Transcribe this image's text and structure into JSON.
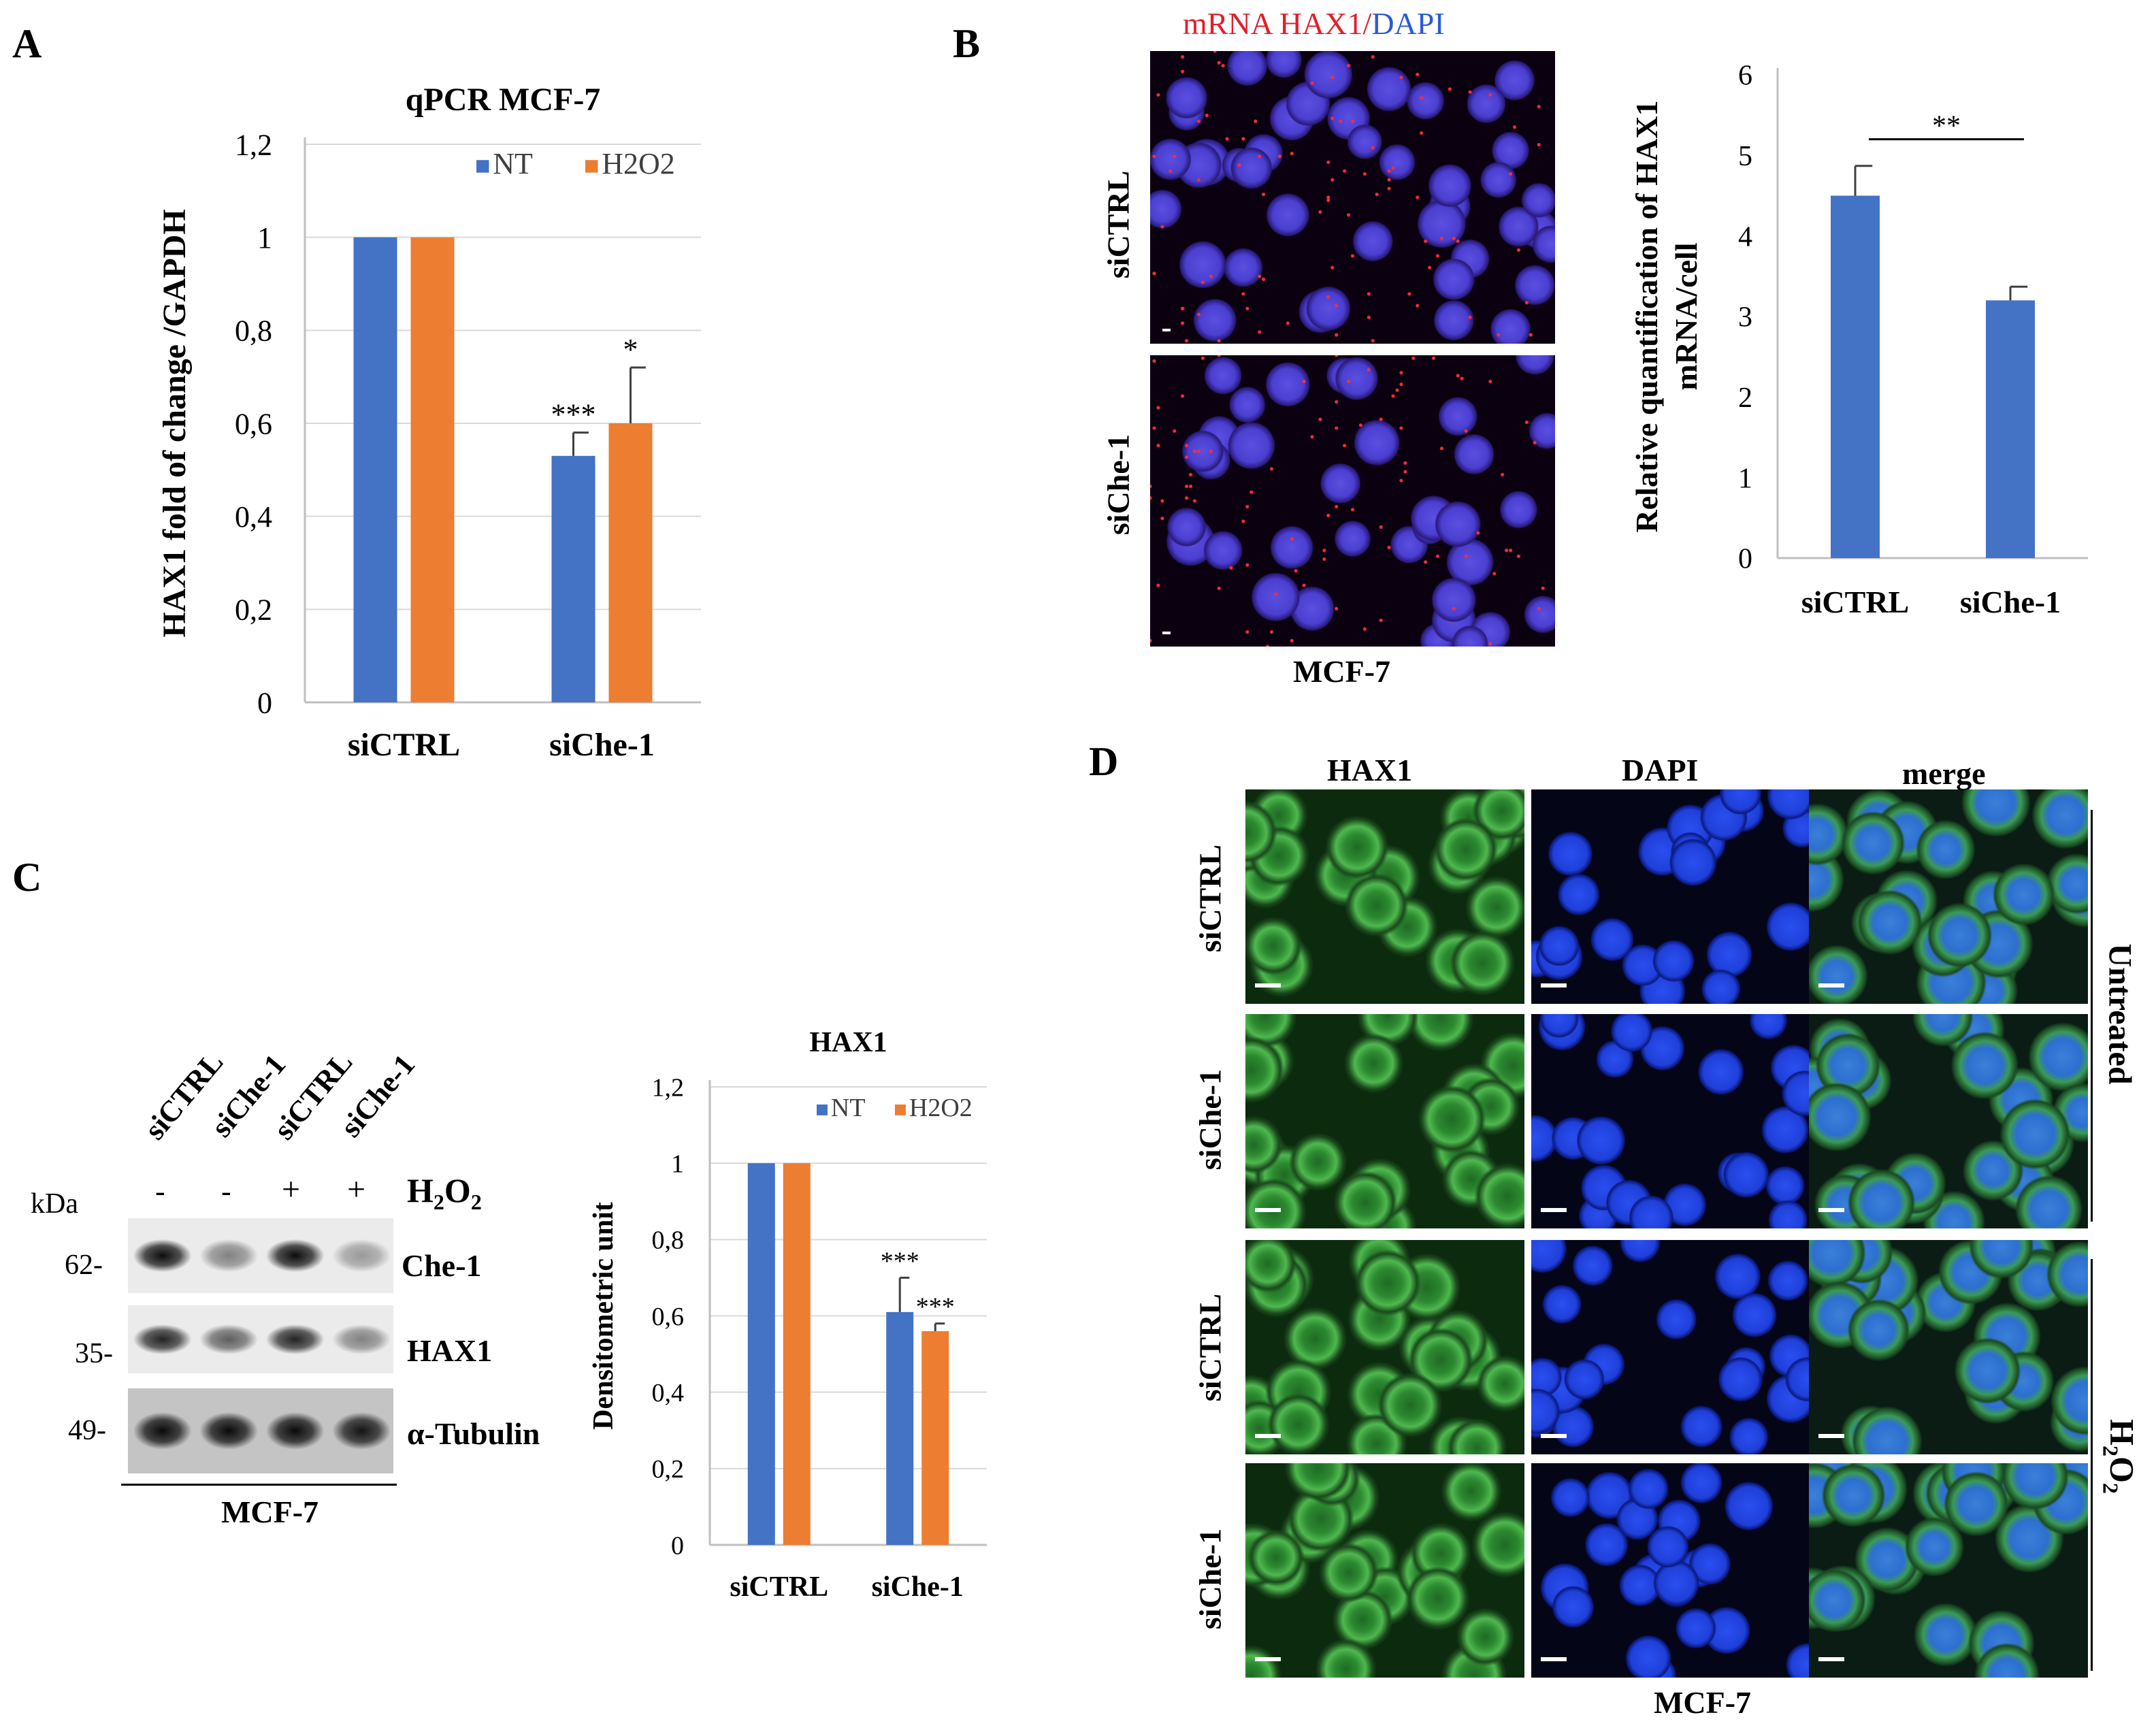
{
  "panels": {
    "a": "A",
    "b": "B",
    "c": "C",
    "d": "D"
  },
  "chart_data": [
    {
      "id": "chartA",
      "type": "bar",
      "title": "qPCR MCF-7",
      "ylabel": "HAX1 fold of change /GAPDH",
      "xlabel": "",
      "categories": [
        "siCTRL",
        "siChe-1"
      ],
      "ylim": [
        0,
        1.2
      ],
      "yticks": [
        "0",
        "0,2",
        "0,4",
        "0,6",
        "0,8",
        "1",
        "1,2"
      ],
      "grid": true,
      "legend_position": "top-right",
      "series": [
        {
          "name": "NT",
          "color": "#4472C4",
          "values": [
            1.0,
            0.53
          ],
          "errors": [
            0,
            0.05
          ],
          "stars": [
            "",
            "***"
          ]
        },
        {
          "name": "H2O2",
          "color": "#ED7D31",
          "values": [
            1.0,
            0.6
          ],
          "errors": [
            0,
            0.12
          ],
          "stars": [
            "",
            "*"
          ]
        }
      ]
    },
    {
      "id": "chartB",
      "type": "bar",
      "title": "",
      "ylabel": [
        "Relative quantification of HAX1",
        "mRNA/cell"
      ],
      "xlabel": "",
      "categories": [
        "siCTRL",
        "siChe-1"
      ],
      "ylim": [
        0,
        6
      ],
      "yticks": [
        "0",
        "1",
        "2",
        "3",
        "4",
        "5",
        "6"
      ],
      "grid": false,
      "series": [
        {
          "name": "",
          "color": "#4472C4",
          "values": [
            4.5,
            3.2
          ],
          "errors": [
            0.37,
            0.17
          ],
          "stars": [
            "",
            ""
          ]
        }
      ],
      "bracket_label": "**"
    },
    {
      "id": "chartC",
      "type": "bar",
      "title": "HAX1",
      "ylabel": "Densitometric unit",
      "xlabel": "",
      "categories": [
        "siCTRL",
        "siChe-1"
      ],
      "ylim": [
        0,
        1.2
      ],
      "yticks": [
        "0",
        "0,2",
        "0,4",
        "0,6",
        "0,8",
        "1",
        "1,2"
      ],
      "grid": true,
      "legend_position": "top-right",
      "series": [
        {
          "name": "NT",
          "color": "#4472C4",
          "values": [
            1.0,
            0.61
          ],
          "errors": [
            0,
            0.09
          ],
          "stars": [
            "",
            "***"
          ]
        },
        {
          "name": "H2O2",
          "color": "#ED7D31",
          "values": [
            1.0,
            0.56
          ],
          "errors": [
            0,
            0.02
          ],
          "stars": [
            "",
            "***"
          ]
        }
      ]
    }
  ],
  "panel_b": {
    "title_part1": "mRNA HAX1",
    "title_sep": "/",
    "title_part2": "DAPI",
    "row1": "siCTRL",
    "row2": "siChe-1",
    "cell_line": "MCF-7"
  },
  "panel_c": {
    "lanes": [
      "siCTRL",
      "siChe-1",
      "siCTRL",
      "siChe-1"
    ],
    "treatment": [
      "-",
      "-",
      "+",
      "+"
    ],
    "treatment_label_main": "H",
    "treatment_label_sub1": "2",
    "treatment_label_mid": "O",
    "treatment_label_sub2": "2",
    "kda_label": "kDa",
    "markers": [
      "62-",
      "35-",
      "49-"
    ],
    "proteins": [
      "Che-1",
      "HAX1",
      "α-Tubulin"
    ],
    "cell_line": "MCF-7"
  },
  "panel_d": {
    "columns": [
      "HAX1",
      "DAPI",
      "merge"
    ],
    "rows": [
      "siCTRL",
      "siChe-1",
      "siCTRL",
      "siChe-1"
    ],
    "group1": "Untreated",
    "group2_main": "H",
    "group2_sub1": "2",
    "group2_mid": "O",
    "group2_sub2": "2",
    "cell_line": "MCF-7"
  }
}
